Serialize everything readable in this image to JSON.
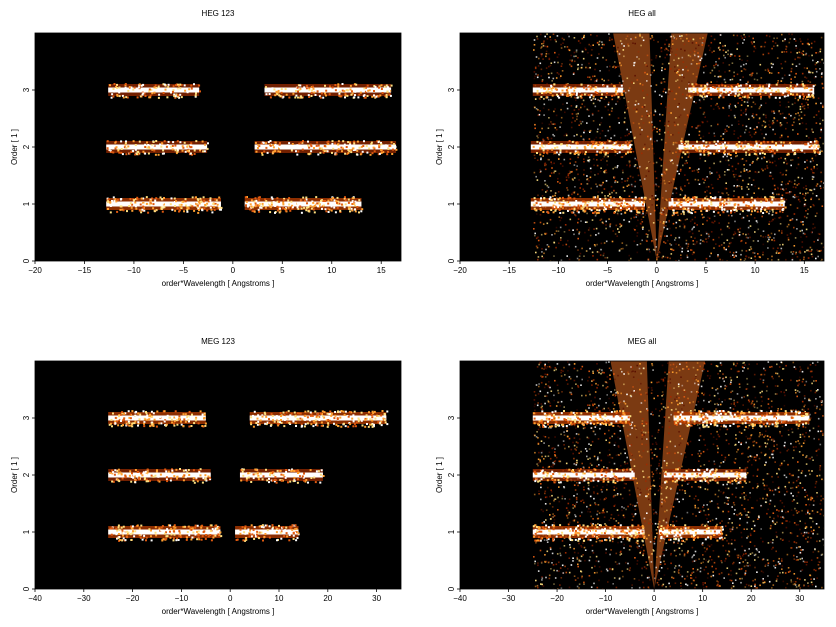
{
  "chart_data": [
    {
      "type": "heatmap",
      "title": "HEG 123",
      "xlabel": "order*Wavelength [ Angstroms ]",
      "ylabel": "Order [ 1 ]",
      "xlim": [
        -20,
        17
      ],
      "ylim": [
        0,
        4
      ],
      "xticks": [
        -20,
        -15,
        -10,
        -5,
        0,
        5,
        10,
        15
      ],
      "yticks": [
        0,
        1,
        2,
        3
      ],
      "bands": [
        {
          "order": 1,
          "ranges": [
            [
              -12.8,
              -1.2
            ],
            [
              1.2,
              13.0
            ]
          ],
          "intensity": "high"
        },
        {
          "order": 2,
          "ranges": [
            [
              -12.8,
              -2.6
            ],
            [
              2.2,
              16.5
            ]
          ],
          "intensity": "medium"
        },
        {
          "order": 3,
          "ranges": [
            [
              -12.6,
              -3.4
            ],
            [
              3.2,
              16.0
            ]
          ],
          "intensity": "medium"
        }
      ],
      "scatter_density": "low"
    },
    {
      "type": "heatmap",
      "title": "HEG all",
      "xlabel": "order*Wavelength [ Angstroms ]",
      "ylabel": "Order [ 1 ]",
      "xlim": [
        -20,
        17
      ],
      "ylim": [
        0,
        4
      ],
      "xticks": [
        -20,
        -15,
        -10,
        -5,
        0,
        5,
        10,
        15
      ],
      "yticks": [
        0,
        1,
        2,
        3
      ],
      "bands": [
        {
          "order": 1,
          "ranges": [
            [
              -12.8,
              -1.2
            ],
            [
              1.2,
              13.0
            ]
          ],
          "intensity": "high"
        },
        {
          "order": 2,
          "ranges": [
            [
              -12.8,
              -2.6
            ],
            [
              2.2,
              16.5
            ]
          ],
          "intensity": "medium"
        },
        {
          "order": 3,
          "ranges": [
            [
              -12.6,
              -3.4
            ],
            [
              3.2,
              16.0
            ]
          ],
          "intensity": "medium"
        }
      ],
      "scatter_density": "high"
    },
    {
      "type": "heatmap",
      "title": "MEG 123",
      "xlabel": "order*Wavelength [ Angstroms ]",
      "ylabel": "Order [ 1 ]",
      "xlim": [
        -40,
        35
      ],
      "ylim": [
        0,
        4
      ],
      "xticks": [
        -40,
        -30,
        -20,
        -10,
        0,
        10,
        20,
        30
      ],
      "yticks": [
        0,
        1,
        2,
        3
      ],
      "bands": [
        {
          "order": 1,
          "ranges": [
            [
              -25,
              -2
            ],
            [
              1,
              14
            ]
          ],
          "intensity": "high"
        },
        {
          "order": 2,
          "ranges": [
            [
              -25,
              -4
            ],
            [
              2,
              19
            ]
          ],
          "intensity": "medium"
        },
        {
          "order": 3,
          "ranges": [
            [
              -25,
              -5
            ],
            [
              4,
              32
            ]
          ],
          "intensity": "high"
        }
      ],
      "scatter_density": "low"
    },
    {
      "type": "heatmap",
      "title": "MEG all",
      "xlabel": "order*Wavelength [ Angstroms ]",
      "ylabel": "Order [ 1 ]",
      "xlim": [
        -40,
        35
      ],
      "ylim": [
        0,
        4
      ],
      "xticks": [
        -40,
        -30,
        -20,
        -10,
        0,
        10,
        20,
        30
      ],
      "yticks": [
        0,
        1,
        2,
        3
      ],
      "bands": [
        {
          "order": 1,
          "ranges": [
            [
              -25,
              -2
            ],
            [
              1,
              14
            ]
          ],
          "intensity": "high"
        },
        {
          "order": 2,
          "ranges": [
            [
              -25,
              -4
            ],
            [
              2,
              19
            ]
          ],
          "intensity": "medium"
        },
        {
          "order": 3,
          "ranges": [
            [
              -25,
              -5
            ],
            [
              4,
              32
            ]
          ],
          "intensity": "high"
        }
      ],
      "scatter_density": "high"
    }
  ],
  "colors": {
    "background": "#000000",
    "colormap": [
      "#5a0f00",
      "#a02a00",
      "#e05a10",
      "#ffa030",
      "#ffe080",
      "#ffffff"
    ]
  }
}
